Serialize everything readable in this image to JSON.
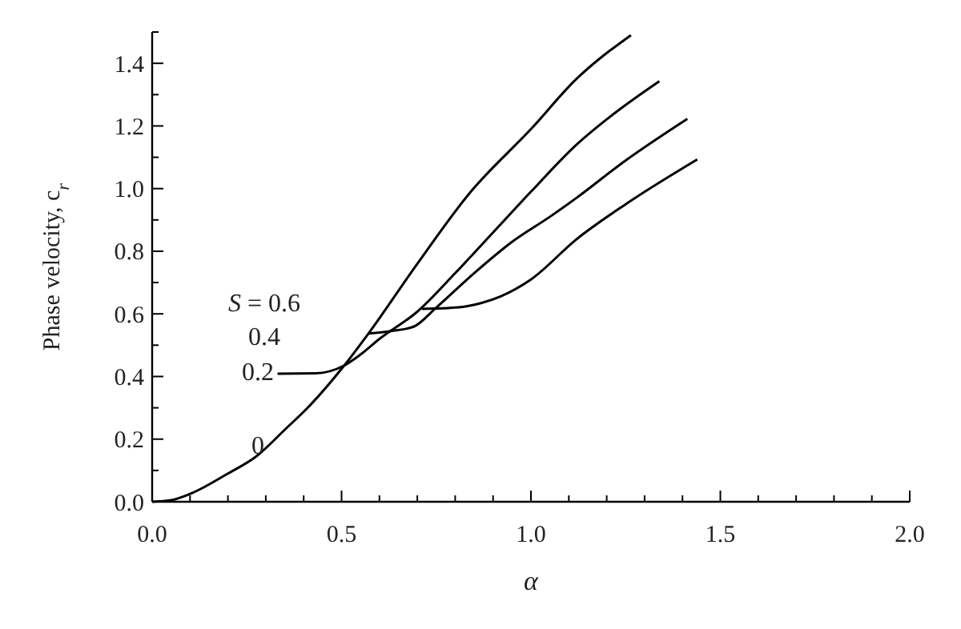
{
  "chart_data": {
    "type": "line",
    "xlabel": "α",
    "ylabel": "Phase velocity, c$_{r}$",
    "xlim": [
      0,
      2
    ],
    "ylim": [
      0,
      1.5
    ],
    "xticks": [
      {
        "value": 0,
        "label": "0.0"
      },
      {
        "value": 0.1,
        "label": null
      },
      {
        "value": 0.2,
        "label": null
      },
      {
        "value": 0.3,
        "label": null
      },
      {
        "value": 0.4,
        "label": null
      },
      0.5,
      {
        "value": 0.6,
        "label": null
      },
      {
        "value": 0.7,
        "label": null
      },
      {
        "value": 0.8,
        "label": null
      },
      {
        "value": 0.9,
        "label": null
      },
      {
        "value": 1,
        "label": "1.0"
      },
      {
        "value": 1.1,
        "label": null
      },
      {
        "value": 1.2,
        "label": null
      },
      {
        "value": 1.3,
        "label": null
      },
      {
        "value": 1.4,
        "label": null
      },
      1.5,
      {
        "value": 1.6,
        "label": null
      },
      {
        "value": 1.7,
        "label": null
      },
      {
        "value": 1.8,
        "label": null
      },
      {
        "value": 1.9,
        "label": null
      },
      {
        "value": 2,
        "label": "2.0"
      }
    ],
    "yticks": [
      {
        "value": 0,
        "label": "0.0"
      },
      {
        "value": 0.1,
        "label": null
      },
      0.2,
      {
        "value": 0.3,
        "label": null
      },
      0.4,
      {
        "value": 0.5,
        "label": null
      },
      0.6,
      {
        "value": 0.7,
        "label": null
      },
      0.8,
      {
        "value": 0.9,
        "label": null
      },
      {
        "value": 1,
        "label": "1.0"
      },
      {
        "value": 1.1,
        "label": null
      },
      1.2,
      {
        "value": 1.3,
        "label": null
      },
      1.4,
      {
        "value": 1.5,
        "label": null
      }
    ],
    "grid": false,
    "marker": "none",
    "line_style": "solid",
    "series": [
      {
        "color": "#000000",
        "x": [
          0,
          0.05,
          0.1,
          0.2,
          0.275,
          0.35,
          0.416,
          0.507,
          0.571,
          0.7,
          0.839,
          1.0,
          1.12,
          1.264
        ],
        "values": [
          0,
          0.005,
          0.025,
          0.09,
          0.145,
          0.23,
          0.307,
          0.435,
          0.537,
          0.76,
          0.987,
          1.19,
          1.35,
          1.49
        ]
      },
      {
        "color": "#000000",
        "x": [
          0.331,
          0.43,
          0.507,
          0.55,
          0.6,
          0.698,
          0.8,
          0.9,
          1.0,
          1.12,
          1.22,
          1.339
        ],
        "values": [
          0.409,
          0.41,
          0.435,
          0.47,
          0.52,
          0.605,
          0.73,
          0.86,
          0.99,
          1.14,
          1.24,
          1.343
        ]
      },
      {
        "color": "#000000",
        "x": [
          0.571,
          0.63,
          0.69,
          0.75,
          0.85,
          0.95,
          1.05,
          1.12,
          1.25,
          1.413
        ],
        "values": [
          0.537,
          0.545,
          0.559,
          0.62,
          0.73,
          0.83,
          0.91,
          0.97,
          1.09,
          1.223
        ]
      },
      {
        "color": "#000000",
        "x": [
          0.712,
          0.81,
          0.87,
          0.92,
          1.0,
          1.12,
          1.25,
          1.439
        ],
        "values": [
          0.616,
          0.621,
          0.635,
          0.656,
          0.71,
          0.838,
          0.95,
          1.093
        ]
      }
    ],
    "annotations": [
      "S = 0.6",
      "0.4",
      "0.2",
      "0"
    ]
  }
}
